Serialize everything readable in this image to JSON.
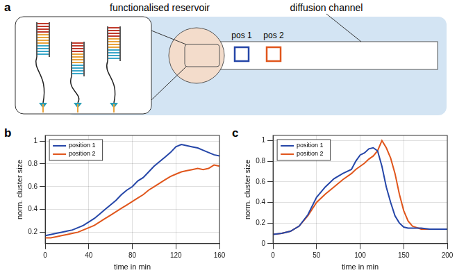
{
  "diagram": {
    "panel_label": "a",
    "reservoir_label": "functionalised reservoir",
    "channel_label": "diffusion channel",
    "positions": [
      {
        "label": "pos 1",
        "color": "#2546a8"
      },
      {
        "label": "pos 2",
        "color": "#e0561c"
      }
    ]
  },
  "chart_data": [
    {
      "panel_label": "b",
      "type": "line",
      "x_label": "time in min",
      "y_label": "norm. cluster size",
      "x": [
        0,
        5,
        10,
        15,
        20,
        25,
        30,
        35,
        40,
        45,
        50,
        55,
        60,
        65,
        70,
        75,
        80,
        85,
        90,
        95,
        100,
        105,
        110,
        115,
        120,
        125,
        130,
        135,
        140,
        145,
        150,
        155,
        160
      ],
      "series": [
        {
          "name": "position 1",
          "color": "#2546a8",
          "line_style": "solid",
          "marker": "none",
          "values": [
            0.17,
            0.18,
            0.19,
            0.2,
            0.21,
            0.22,
            0.24,
            0.26,
            0.29,
            0.32,
            0.36,
            0.4,
            0.44,
            0.48,
            0.53,
            0.57,
            0.6,
            0.65,
            0.68,
            0.73,
            0.78,
            0.82,
            0.86,
            0.9,
            0.95,
            0.97,
            0.96,
            0.95,
            0.94,
            0.92,
            0.9,
            0.88,
            0.87
          ]
        },
        {
          "name": "position 2",
          "color": "#e0561c",
          "line_style": "solid",
          "marker": "none",
          "values": [
            0.15,
            0.15,
            0.16,
            0.17,
            0.18,
            0.19,
            0.2,
            0.22,
            0.24,
            0.26,
            0.29,
            0.32,
            0.35,
            0.38,
            0.41,
            0.44,
            0.47,
            0.5,
            0.53,
            0.57,
            0.6,
            0.63,
            0.66,
            0.69,
            0.71,
            0.73,
            0.74,
            0.75,
            0.76,
            0.75,
            0.76,
            0.79,
            0.78
          ]
        }
      ],
      "xlim": [
        0,
        160
      ],
      "xticks": [
        0,
        40,
        80,
        120,
        160
      ],
      "ylim": [
        0.1,
        1.05
      ],
      "yticks": [
        0.2,
        0.4,
        0.6,
        0.8,
        1
      ],
      "grid": true,
      "legend": "upper left"
    },
    {
      "panel_label": "c",
      "type": "line",
      "x_label": "time in min",
      "y_label": "norm. cluster size",
      "x": [
        0,
        10,
        20,
        30,
        40,
        50,
        60,
        70,
        80,
        90,
        95,
        100,
        105,
        110,
        115,
        120,
        125,
        130,
        135,
        140,
        145,
        150,
        155,
        160,
        170,
        180,
        190,
        200
      ],
      "series": [
        {
          "name": "position 1",
          "color": "#2546a8",
          "line_style": "solid",
          "marker": "none",
          "values": [
            0.09,
            0.1,
            0.12,
            0.17,
            0.28,
            0.45,
            0.55,
            0.63,
            0.68,
            0.72,
            0.8,
            0.86,
            0.88,
            0.92,
            0.93,
            0.9,
            0.75,
            0.55,
            0.4,
            0.27,
            0.2,
            0.16,
            0.15,
            0.15,
            0.15,
            0.14,
            0.14,
            0.14
          ]
        },
        {
          "name": "position 2",
          "color": "#e0561c",
          "line_style": "solid",
          "marker": "none",
          "values": [
            0.09,
            0.1,
            0.12,
            0.17,
            0.27,
            0.4,
            0.48,
            0.55,
            0.62,
            0.68,
            0.72,
            0.75,
            0.78,
            0.82,
            0.85,
            0.9,
            1.0,
            0.93,
            0.83,
            0.68,
            0.48,
            0.32,
            0.22,
            0.17,
            0.14,
            0.14,
            0.14,
            0.14
          ]
        }
      ],
      "xlim": [
        0,
        200
      ],
      "xticks": [
        0,
        50,
        100,
        150,
        200
      ],
      "ylim": [
        0,
        1.05
      ],
      "yticks": [
        0,
        0.2,
        0.4,
        0.6,
        0.8,
        1
      ],
      "grid": true,
      "legend": "upper left"
    }
  ]
}
